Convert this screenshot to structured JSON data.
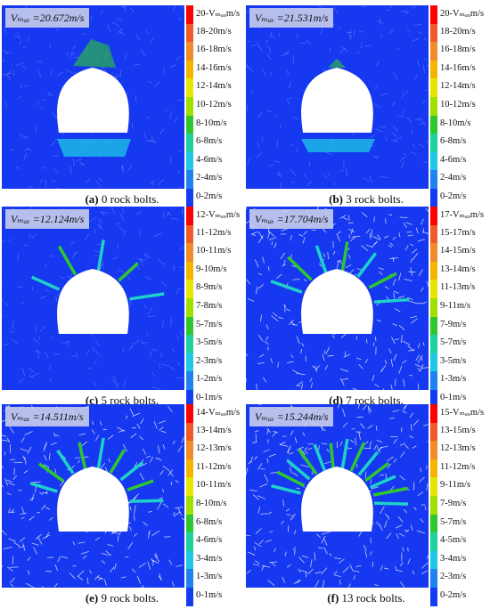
{
  "panels": [
    {
      "vmax": "Vₘₐₓ =20.672m/s",
      "caption_id": "(a)",
      "caption_text": " 0 rock bolts.",
      "legend": [
        "20-Vₘₐₓm/s",
        "18-20m/s",
        "16-18m/s",
        "14-16m/s",
        "12-14m/s",
        "10-12m/s",
        "8-10m/s",
        "6-8m/s",
        "4-6m/s",
        "2-4m/s",
        "0-2m/s"
      ]
    },
    {
      "vmax": "Vₘₐₓ =21.531m/s",
      "caption_id": "(b)",
      "caption_text": " 3 rock bolts.",
      "legend": [
        "20-Vₘₐₓm/s",
        "18-20m/s",
        "16-18m/s",
        "14-16m/s",
        "12-14m/s",
        "10-12m/s",
        "8-10m/s",
        "6-8m/s",
        "4-6m/s",
        "2-4m/s",
        "0-2m/s"
      ]
    },
    {
      "vmax": "Vₘₐₓ =12.124m/s",
      "caption_id": "(c)",
      "caption_text": " 5 rock bolts.",
      "legend": [
        "12-Vₘₐₓm/s",
        "11-12m/s",
        "10-11m/s",
        "9-10m/s",
        "8-9m/s",
        "7-8m/s",
        "5-7m/s",
        "3-5m/s",
        "2-3m/s",
        "1-2m/s",
        "0-1m/s"
      ]
    },
    {
      "vmax": "Vₘₐₓ =17.704m/s",
      "caption_id": "(d)",
      "caption_text": " 7 rock bolts.",
      "legend": [
        "17-Vₘₐₓm/s",
        "15-17m/s",
        "14-15m/s",
        "13-14m/s",
        "11-13m/s",
        "9-11m/s",
        "7-9m/s",
        "5-7m/s",
        "3-5m/s",
        "1-3m/s",
        "0-1m/s"
      ]
    },
    {
      "vmax": "Vₘₐₓ =14.511m/s",
      "caption_id": "(e)",
      "caption_text": " 9 rock bolts.",
      "legend": [
        "14-Vₘₐₓm/s",
        "13-14m/s",
        "12-13m/s",
        "11-12m/s",
        "10-11m/s",
        "8-10m/s",
        "6-8m/s",
        "4-6m/s",
        "3-4m/s",
        "1-3m/s",
        "0-1m/s"
      ]
    },
    {
      "vmax": "Vₘₐₓ =15.244m/s",
      "caption_id": "(f)",
      "caption_text": " 13 rock bolts.",
      "legend": [
        "15-Vₘₐₓm/s",
        "13-15m/s",
        "12-13m/s",
        "11-12m/s",
        "9-11m/s",
        "7-9m/s",
        "5-7m/s",
        "4-5m/s",
        "3-4m/s",
        "2-3m/s",
        "0-2m/s"
      ]
    }
  ],
  "legend_colors": [
    "#ff0000",
    "#f05a2a",
    "#f08c2a",
    "#f5b400",
    "#e6e600",
    "#a0e000",
    "#2ec82e",
    "#1ed2a0",
    "#1ec8e6",
    "#1e82f0",
    "#143cf0"
  ],
  "field_color": "#1638f0",
  "excavation_color": "#ffffff"
}
